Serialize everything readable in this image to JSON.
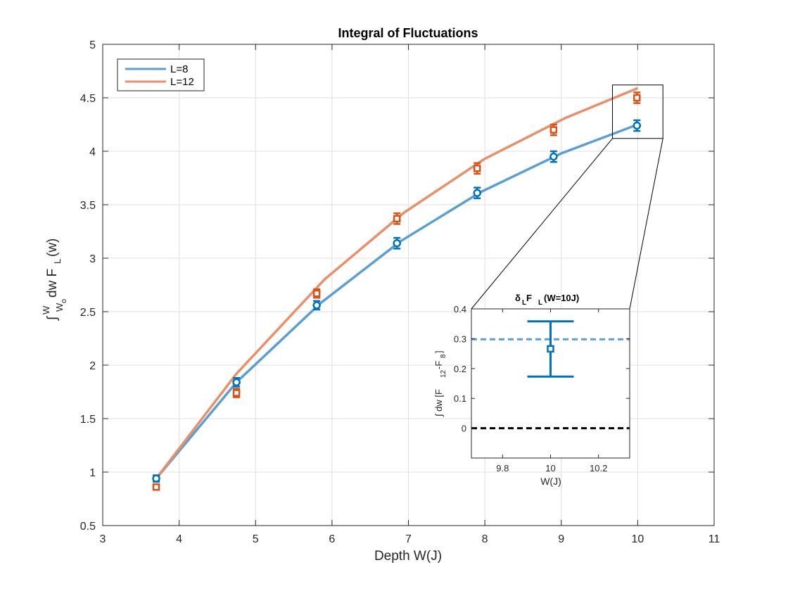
{
  "chart_data": [
    {
      "type": "line",
      "title": "Integral of Fluctuations",
      "xlabel": "Depth W(J)",
      "ylabel": "∫ W Wₒ dw F L (w)",
      "ylabel_parts": {
        "integral": "∫",
        "upper": "W",
        "lower": "W",
        "lower_sub": "o",
        "body": "dw F",
        "sub": "L",
        "tail": "(w)"
      },
      "xlim": [
        3,
        11
      ],
      "ylim": [
        0.5,
        5
      ],
      "xticks": [
        3,
        4,
        5,
        6,
        7,
        8,
        9,
        10,
        11
      ],
      "yticks": [
        0.5,
        1,
        1.5,
        2,
        2.5,
        3,
        3.5,
        4,
        4.5,
        5
      ],
      "grid": true,
      "legend_position": "top-left",
      "series": [
        {
          "name": "L=8",
          "color": "#0072bd",
          "line_color": "#5a9fd4",
          "marker": "circle",
          "line": {
            "x": [
              3.7,
              4.75,
              5.85,
              6.9,
              7.95,
              9.0,
              10.0
            ],
            "y": [
              0.94,
              1.84,
              2.58,
              3.16,
              3.62,
              3.98,
              4.25
            ]
          },
          "points": {
            "x": [
              3.7,
              4.75,
              5.8,
              6.85,
              7.9,
              8.9,
              9.99
            ],
            "y": [
              0.94,
              1.84,
              2.56,
              3.14,
              3.61,
              3.95,
              4.24
            ],
            "err": [
              0.03,
              0.04,
              0.04,
              0.05,
              0.05,
              0.05,
              0.05
            ]
          }
        },
        {
          "name": "L=12",
          "color": "#d95319",
          "line_color": "#e8906a",
          "marker": "square",
          "line": {
            "x": [
              3.7,
              4.75,
              5.9,
              6.95,
              8.0,
              9.05,
              10.0
            ],
            "y": [
              0.94,
              1.92,
              2.8,
              3.43,
              3.93,
              4.31,
              4.59
            ]
          },
          "points": {
            "x": [
              3.7,
              4.75,
              5.8,
              6.85,
              7.9,
              8.9,
              9.99
            ],
            "y": [
              0.86,
              1.74,
              2.67,
              3.37,
              3.84,
              4.2,
              4.5
            ],
            "err": [
              0.02,
              0.04,
              0.04,
              0.05,
              0.05,
              0.05,
              0.05
            ]
          }
        }
      ],
      "zoom_box": {
        "x": [
          9.67,
          10.33
        ],
        "y": [
          4.12,
          4.62
        ]
      }
    },
    {
      "type": "scatter",
      "title_parts": {
        "delta": "δ",
        "delta_sub": "L",
        "f": " F",
        "f_sub": "L",
        "rest": "(W=10J)"
      },
      "title": "δ L F L (W=10J)",
      "xlabel": "W(J)",
      "ylabel_parts": {
        "prefix": "∫ dw [F",
        "sub1": "12",
        "mid": "-F",
        "sub2": "8",
        "suffix": "]"
      },
      "ylabel": "∫ dw [F 12 -F 8 ]",
      "xlim": [
        9.67,
        10.33
      ],
      "ylim": [
        -0.1,
        0.4
      ],
      "xticks": [
        9.8,
        10,
        10.2
      ],
      "xtick_labels": [
        "9.8",
        "10",
        "10.2"
      ],
      "yticks": [
        0,
        0.1,
        0.2,
        0.3,
        0.4
      ],
      "ytick_labels": [
        "0",
        "0.1",
        "0.2",
        "0.3",
        "0.4"
      ],
      "grid": false,
      "point": {
        "x": 10.0,
        "y": 0.266,
        "err_low": 0.093,
        "err_high": 0.092,
        "color": "#0072bd"
      },
      "reference_lines": [
        {
          "y": 0.298,
          "color": "#5a9fd4",
          "style": "dashed"
        },
        {
          "y": 0.0,
          "color": "#000000",
          "style": "dashed"
        }
      ]
    }
  ]
}
